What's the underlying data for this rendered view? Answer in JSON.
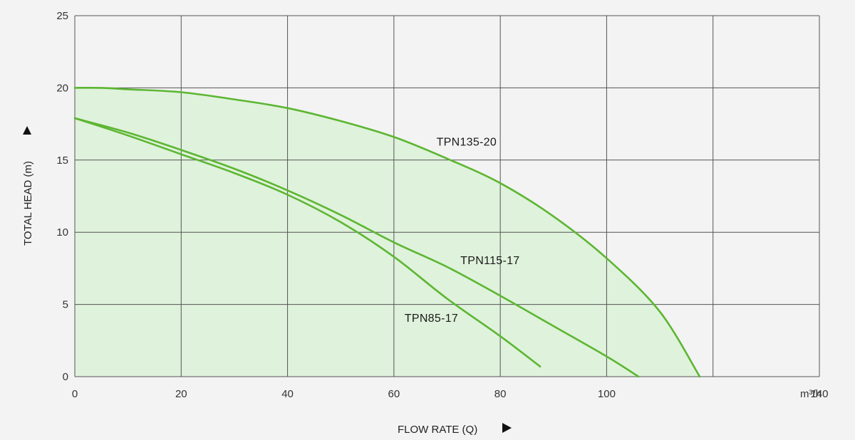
{
  "chart_data": {
    "type": "line",
    "xlabel": "FLOW RATE (Q)",
    "ylabel": "TOTAL HEAD (m)",
    "x_unit": "m³/h",
    "xlim": [
      0,
      140
    ],
    "ylim": [
      0,
      25
    ],
    "x_ticks": [
      0,
      20,
      40,
      60,
      80,
      100,
      140
    ],
    "y_ticks": [
      0,
      5,
      10,
      15,
      20,
      25
    ],
    "grid": true,
    "colors": {
      "line": "#5cb632",
      "fill": "#dff2db",
      "grid": "#555555",
      "background": "#f3f3f3"
    },
    "series": [
      {
        "name": "TPN135-20",
        "x": [
          0,
          5,
          10,
          20,
          30,
          40,
          50,
          60,
          70,
          80,
          90,
          100,
          110,
          117.5
        ],
        "y": [
          20,
          20,
          19.9,
          19.7,
          19.2,
          18.6,
          17.7,
          16.6,
          15.1,
          13.4,
          11.1,
          8.2,
          4.5,
          0
        ]
      },
      {
        "name": "TPN115-17",
        "x": [
          0,
          10,
          20,
          30,
          40,
          50,
          60,
          70,
          80,
          90,
          100,
          106
        ],
        "y": [
          17.9,
          16.9,
          15.7,
          14.4,
          12.9,
          11.2,
          9.3,
          7.6,
          5.6,
          3.5,
          1.4,
          0
        ]
      },
      {
        "name": "TPN85-17",
        "x": [
          0,
          10,
          20,
          30,
          40,
          50,
          60,
          70,
          80,
          87.5
        ],
        "y": [
          17.9,
          16.7,
          15.4,
          14.1,
          12.6,
          10.7,
          8.3,
          5.4,
          2.8,
          0.7
        ]
      }
    ]
  }
}
